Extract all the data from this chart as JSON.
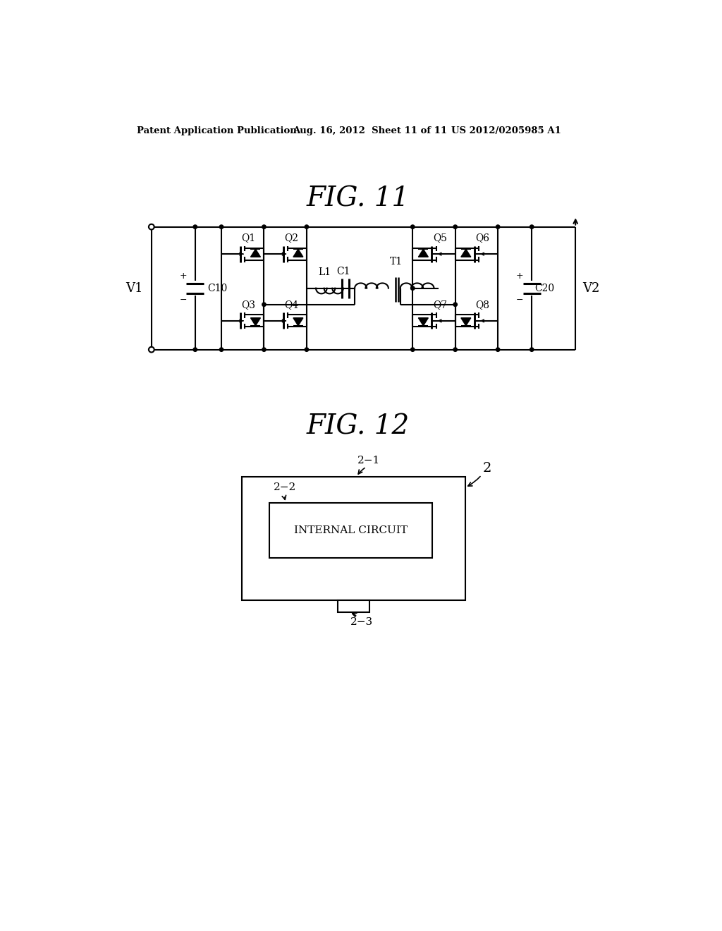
{
  "background_color": "#ffffff",
  "header_left": "Patent Application Publication",
  "header_mid": "Aug. 16, 2012  Sheet 11 of 11",
  "header_right": "US 2012/0205985 A1",
  "fig11_title": "FIG. 11",
  "fig12_title": "FIG. 12",
  "text_color": "#000000",
  "line_color": "#000000"
}
